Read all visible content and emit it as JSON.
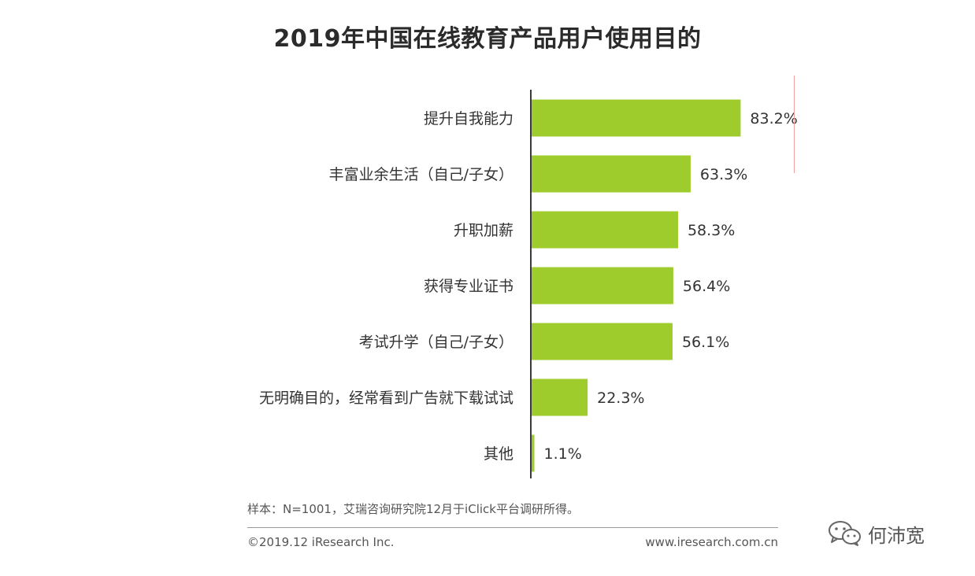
{
  "title": "2019年中国在线教育产品用户使用目的",
  "footer": {
    "sample_note": "样本：N=1001，艾瑞咨询研究院12月于iClick平台调研所得。",
    "copyright": "©2019.12 iResearch Inc.",
    "website": "www.iresearch.com.cn"
  },
  "watermark": {
    "icon": "wechat-icon",
    "text": "何沛宽"
  },
  "colors": {
    "bar": "#9dcc2c",
    "axis": "#3a3a3a",
    "text": "#333333"
  },
  "chart_data": {
    "type": "bar",
    "orientation": "horizontal",
    "categories": [
      "提升自我能力",
      "丰富业余生活（自己/子女）",
      "升职加薪",
      "获得专业证书",
      "考试升学（自己/子女）",
      "无明确目的，经常看到广告就下载试试",
      "其他"
    ],
    "values": [
      83.2,
      63.3,
      58.3,
      56.4,
      56.1,
      22.3,
      1.1
    ],
    "value_labels": [
      "83.2%",
      "63.3%",
      "58.3%",
      "56.4%",
      "56.1%",
      "22.3%",
      "1.1%"
    ],
    "xlim": [
      0,
      100
    ],
    "grid": false,
    "legend": "none"
  }
}
